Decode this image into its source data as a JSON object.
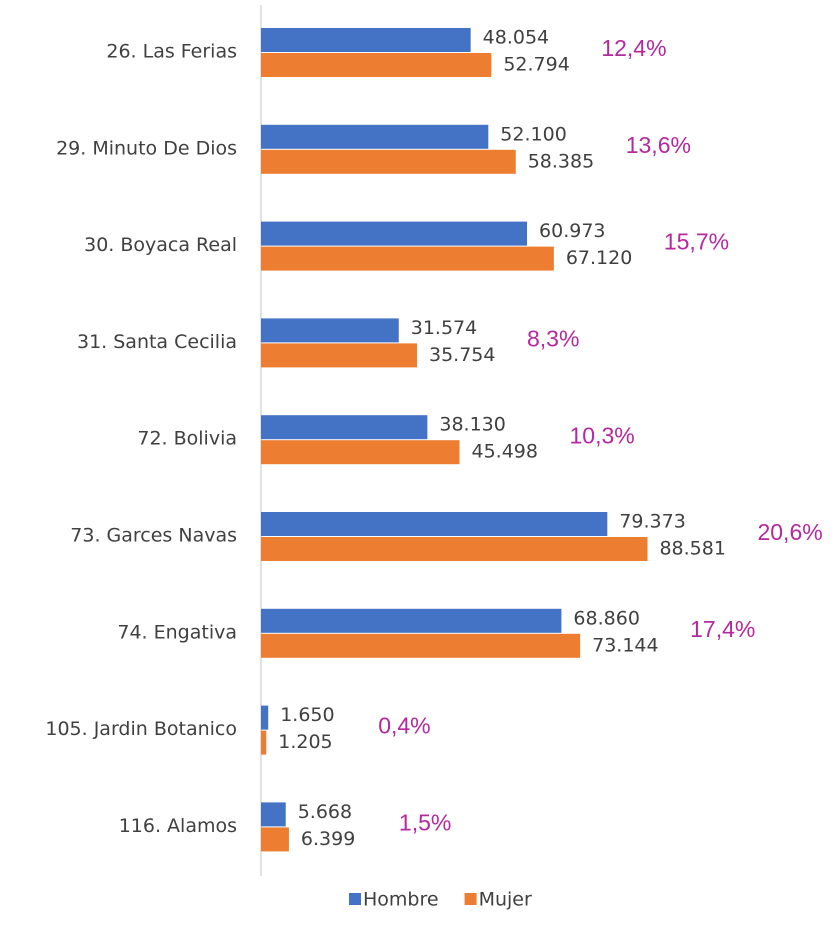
{
  "chart_data": {
    "type": "bar",
    "orientation": "horizontal",
    "categories": [
      "26. Las Ferias",
      "29. Minuto De Dios",
      "30. Boyaca Real",
      "31. Santa Cecilia",
      "72. Bolivia",
      "73. Garces Navas",
      "74. Engativa",
      "105. Jardin Botanico",
      "116. Alamos"
    ],
    "series": [
      {
        "name": "Hombre",
        "color": "#4472c4",
        "values": [
          48054,
          52100,
          60973,
          31574,
          38130,
          79373,
          68860,
          1650,
          5668
        ],
        "value_labels": [
          "48.054",
          "52.100",
          "60.973",
          "31.574",
          "38.130",
          "79.373",
          "68.860",
          "1.650",
          "5.668"
        ]
      },
      {
        "name": "Mujer",
        "color": "#ed7d31",
        "values": [
          52794,
          58385,
          67120,
          35754,
          45498,
          88581,
          73144,
          1205,
          6399
        ],
        "value_labels": [
          "52.794",
          "58.385",
          "67.120",
          "35.754",
          "45.498",
          "88.581",
          "73.144",
          "1.205",
          "6.399"
        ]
      }
    ],
    "annotations": [
      "12,4%",
      "13,6%",
      "15,7%",
      "8,3%",
      "10,3%",
      "20,6%",
      "17,4%",
      "0,4%",
      "1,5%"
    ],
    "annotation_color": "#b5289e",
    "legend": "bottom"
  }
}
